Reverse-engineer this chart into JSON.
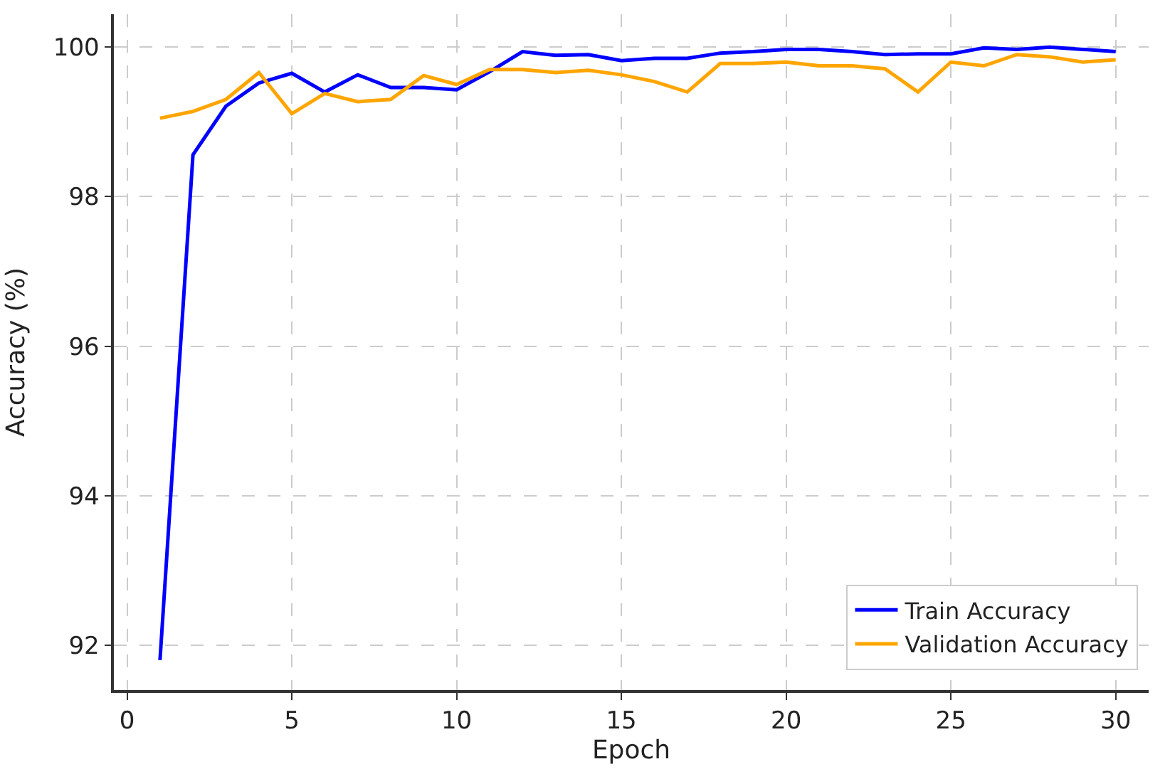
{
  "chart_data": {
    "type": "line",
    "xlabel": "Epoch",
    "ylabel": "Accuracy (%)",
    "x": [
      1,
      2,
      3,
      4,
      5,
      6,
      7,
      8,
      9,
      10,
      11,
      12,
      13,
      14,
      15,
      16,
      17,
      18,
      19,
      20,
      21,
      22,
      23,
      24,
      25,
      26,
      27,
      28,
      29,
      30
    ],
    "series": [
      {
        "name": "Train Accuracy",
        "color": "#0000ff",
        "values": [
          91.8,
          98.56,
          99.21,
          99.52,
          99.65,
          99.4,
          99.63,
          99.46,
          99.46,
          99.43,
          99.67,
          99.94,
          99.89,
          99.9,
          99.82,
          99.85,
          99.85,
          99.92,
          99.94,
          99.97,
          99.97,
          99.94,
          99.9,
          99.91,
          99.91,
          99.99,
          99.97,
          100.0,
          99.97,
          99.94
        ]
      },
      {
        "name": "Validation Accuracy",
        "color": "#ffa500",
        "values": [
          99.05,
          99.14,
          99.3,
          99.66,
          99.11,
          99.38,
          99.27,
          99.3,
          99.62,
          99.5,
          99.7,
          99.7,
          99.66,
          99.69,
          99.63,
          99.54,
          99.4,
          99.78,
          99.78,
          99.8,
          99.75,
          99.75,
          99.71,
          99.4,
          99.8,
          99.75,
          99.9,
          99.87,
          99.8,
          99.83
        ]
      }
    ],
    "xlim": [
      -0.4,
      31
    ],
    "xticks": [
      0,
      5,
      10,
      15,
      20,
      25,
      30
    ],
    "ylim": [
      91.4,
      100.44
    ],
    "yticks": [
      92,
      94,
      96,
      98,
      100
    ],
    "grid": true,
    "legend": "bottom right",
    "marker": "none",
    "line_style": "solid"
  }
}
